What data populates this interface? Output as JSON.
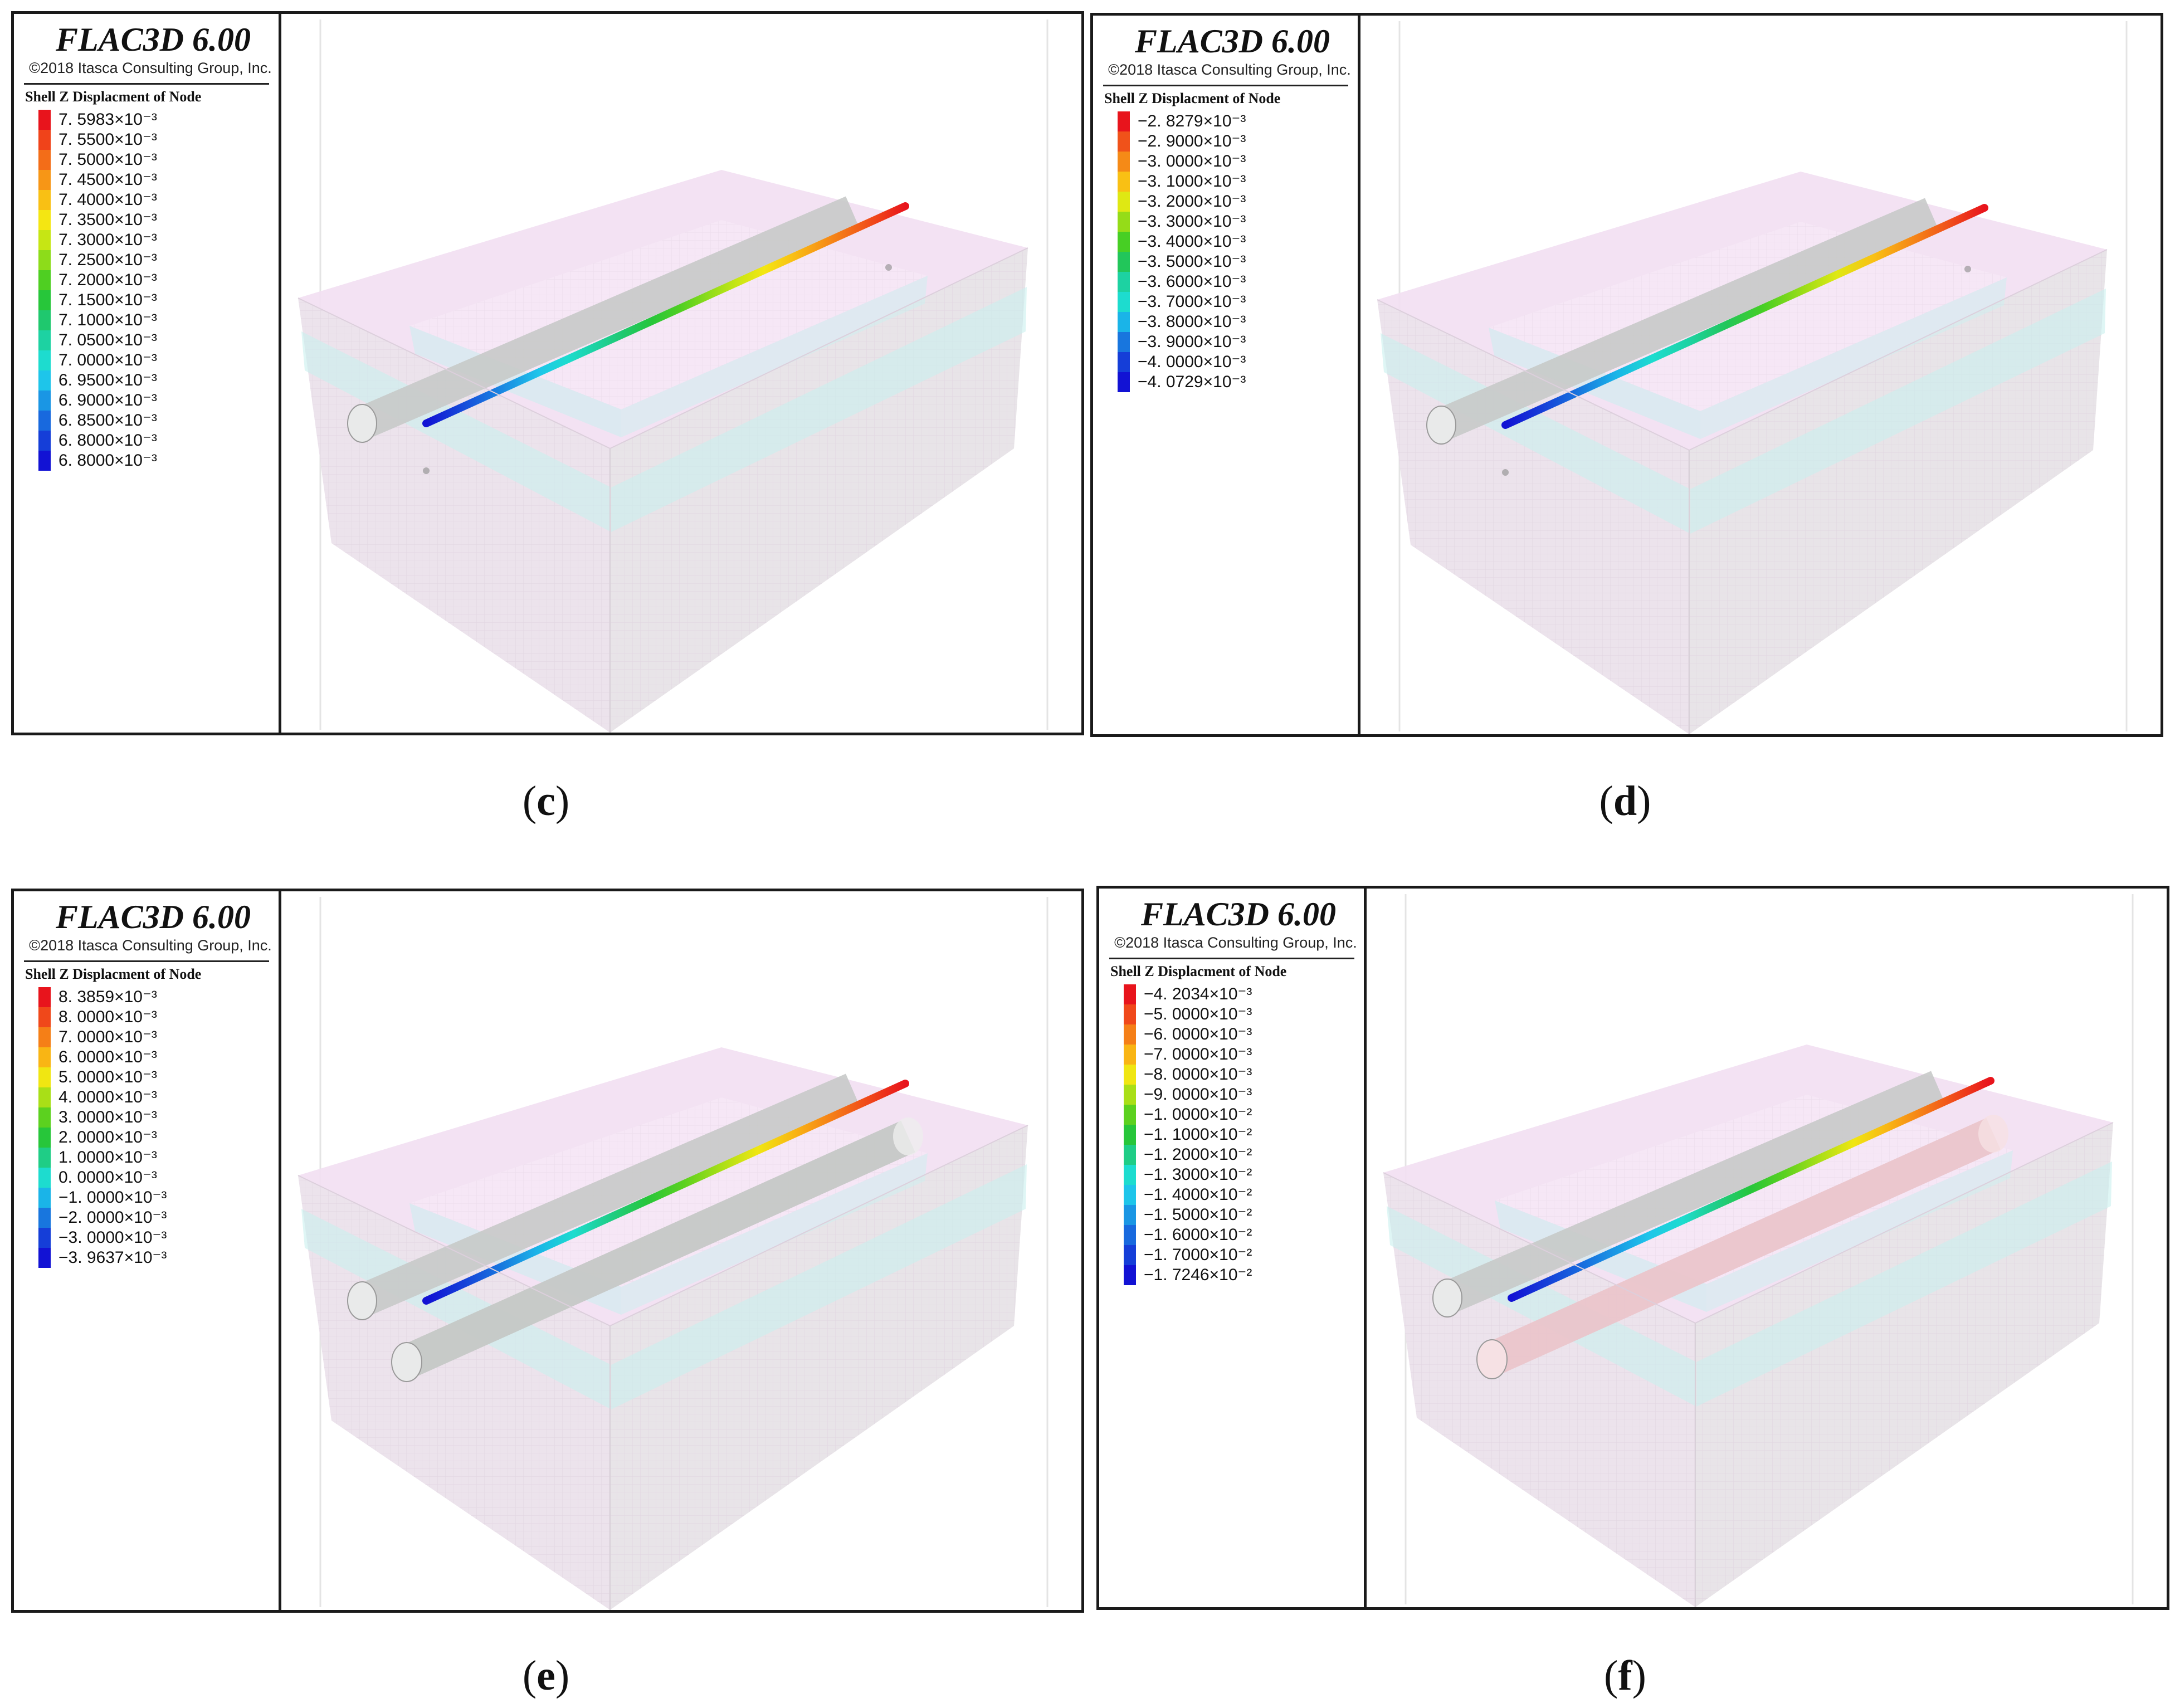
{
  "panels": [
    {
      "id": "c",
      "app_title": "FLAC3D 6.00",
      "copyright": "©2018 Itasca Consulting Group, Inc.",
      "legend_title": "Shell Z Displacment of Node",
      "legend": [
        {
          "label": "7. 5983×10⁻³",
          "color": "#e8141c"
        },
        {
          "label": "7. 5500×10⁻³",
          "color": "#f0431a"
        },
        {
          "label": "7. 5000×10⁻³",
          "color": "#f36d18"
        },
        {
          "label": "7. 4500×10⁻³",
          "color": "#f79616"
        },
        {
          "label": "7. 4000×10⁻³",
          "color": "#f9c014"
        },
        {
          "label": "7. 3500×10⁻³",
          "color": "#f4e612"
        },
        {
          "label": "7. 3000×10⁻³",
          "color": "#c6e614"
        },
        {
          "label": "7. 2500×10⁻³",
          "color": "#8ddc1a"
        },
        {
          "label": "7. 2000×10⁻³",
          "color": "#4fcf22"
        },
        {
          "label": "7. 1500×10⁻³",
          "color": "#27c63a"
        },
        {
          "label": "7. 1000×10⁻³",
          "color": "#1fc86e"
        },
        {
          "label": "7. 0500×10⁻³",
          "color": "#1dd2a2"
        },
        {
          "label": "7. 0000×10⁻³",
          "color": "#1ddccf"
        },
        {
          "label": "6. 9500×10⁻³",
          "color": "#1ec5ea"
        },
        {
          "label": "6. 9000×10⁻³",
          "color": "#1a96e4"
        },
        {
          "label": "6. 8500×10⁻³",
          "color": "#1869de"
        },
        {
          "label": "6. 8000×10⁻³",
          "color": "#153ed8"
        },
        {
          "label": "6. 8000×10⁻³",
          "color": "#1212d4"
        }
      ],
      "second_tunnel": "none",
      "caption": "c"
    },
    {
      "id": "d",
      "app_title": "FLAC3D 6.00",
      "copyright": "©2018 Itasca Consulting Group, Inc.",
      "legend_title": "Shell Z Displacment of Node",
      "legend": [
        {
          "label": "−2. 8279×10⁻³",
          "color": "#e8141c"
        },
        {
          "label": "−2. 9000×10⁻³",
          "color": "#f0521a"
        },
        {
          "label": "−3. 0000×10⁻³",
          "color": "#f58a17"
        },
        {
          "label": "−3. 1000×10⁻³",
          "color": "#f9c014"
        },
        {
          "label": "−3. 2000×10⁻³",
          "color": "#dfe813"
        },
        {
          "label": "−3. 3000×10⁻³",
          "color": "#95dc18"
        },
        {
          "label": "−3. 4000×10⁻³",
          "color": "#47cf24"
        },
        {
          "label": "−3. 5000×10⁻³",
          "color": "#22c65a"
        },
        {
          "label": "−3. 6000×10⁻³",
          "color": "#1dd2a2"
        },
        {
          "label": "−3. 7000×10⁻³",
          "color": "#1ddccf"
        },
        {
          "label": "−3. 8000×10⁻³",
          "color": "#1ab4e8"
        },
        {
          "label": "−3. 9000×10⁻³",
          "color": "#1876de"
        },
        {
          "label": "−4. 0000×10⁻³",
          "color": "#153ed8"
        },
        {
          "label": "−4. 0729×10⁻³",
          "color": "#1212d4"
        }
      ],
      "second_tunnel": "none",
      "caption": "d"
    },
    {
      "id": "e",
      "app_title": "FLAC3D 6.00",
      "copyright": "©2018 Itasca Consulting Group, Inc.",
      "legend_title": "Shell Z Displacment of Node",
      "legend": [
        {
          "label": "8. 3859×10⁻³",
          "color": "#e8141c"
        },
        {
          "label": "8. 0000×10⁻³",
          "color": "#f0481a"
        },
        {
          "label": "7. 0000×10⁻³",
          "color": "#f57f17"
        },
        {
          "label": "6. 0000×10⁻³",
          "color": "#f9b514"
        },
        {
          "label": "5. 0000×10⁻³",
          "color": "#f0e612"
        },
        {
          "label": "4. 0000×10⁻³",
          "color": "#a9df17"
        },
        {
          "label": "3. 0000×10⁻³",
          "color": "#5cd11f"
        },
        {
          "label": "2. 0000×10⁻³",
          "color": "#27c63a"
        },
        {
          "label": "1. 0000×10⁻³",
          "color": "#1fcd86"
        },
        {
          "label": "0. 0000×10⁻³",
          "color": "#1ddccf"
        },
        {
          "label": "−1. 0000×10⁻³",
          "color": "#1ab4e8"
        },
        {
          "label": "−2. 0000×10⁻³",
          "color": "#1876de"
        },
        {
          "label": "−3. 0000×10⁻³",
          "color": "#153ed8"
        },
        {
          "label": "−3. 9637×10⁻³",
          "color": "#1212d4"
        }
      ],
      "second_tunnel": "grey",
      "caption": "e"
    },
    {
      "id": "f",
      "app_title": "FLAC3D 6.00",
      "copyright": "©2018 Itasca Consulting Group, Inc.",
      "legend_title": "Shell Z Displacment of Node",
      "legend": [
        {
          "label": "−4. 2034×10⁻³",
          "color": "#e8141c"
        },
        {
          "label": "−5. 0000×10⁻³",
          "color": "#f0481a"
        },
        {
          "label": "−6. 0000×10⁻³",
          "color": "#f57f17"
        },
        {
          "label": "−7. 0000×10⁻³",
          "color": "#f9b514"
        },
        {
          "label": "−8. 0000×10⁻³",
          "color": "#f0e612"
        },
        {
          "label": "−9. 0000×10⁻³",
          "color": "#a9df17"
        },
        {
          "label": "−1. 0000×10⁻²",
          "color": "#5cd11f"
        },
        {
          "label": "−1. 1000×10⁻²",
          "color": "#27c63a"
        },
        {
          "label": "−1. 2000×10⁻²",
          "color": "#1fcd86"
        },
        {
          "label": "−1. 3000×10⁻²",
          "color": "#1ddccf"
        },
        {
          "label": "−1. 4000×10⁻²",
          "color": "#1ec5ea"
        },
        {
          "label": "−1. 5000×10⁻²",
          "color": "#1a96e4"
        },
        {
          "label": "−1. 6000×10⁻²",
          "color": "#1869de"
        },
        {
          "label": "−1. 7000×10⁻²",
          "color": "#153ed8"
        },
        {
          "label": "−1. 7246×10⁻²",
          "color": "#1212d4"
        }
      ],
      "second_tunnel": "pink",
      "caption": "f"
    }
  ]
}
